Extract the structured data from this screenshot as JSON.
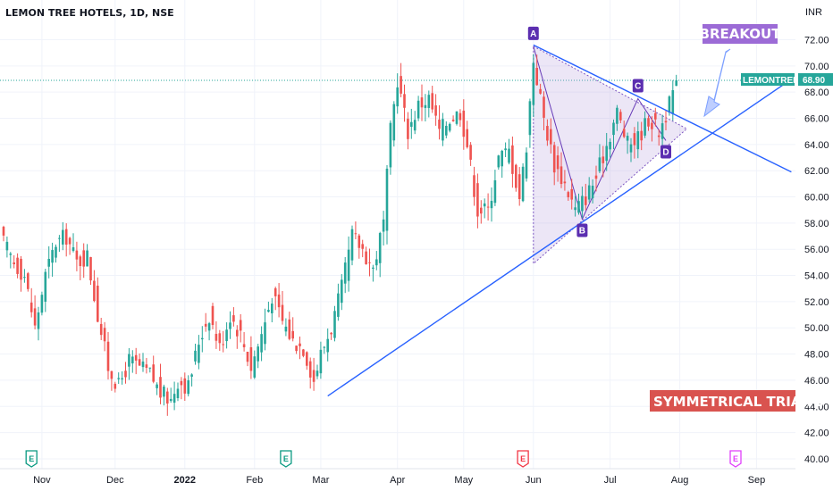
{
  "chart_title": "LEMON TREE HOTELS, 1D, NSE",
  "colors": {
    "up": "#26a69a",
    "down": "#ef5350",
    "trend": "#2962ff",
    "triangle_fill": "#b39ddb",
    "point": "#5b2eb0",
    "breakout": "#9c6bd6",
    "banner": "#d9534f"
  },
  "chart_data": {
    "type": "candlestick",
    "title": "LEMON TREE HOTELS, 1D, NSE",
    "ylabel": "INR",
    "ylim": [
      39.5,
      73.5
    ],
    "y_ticks": [
      "40.00",
      "42.00",
      "44.00",
      "46.00",
      "48.00",
      "50.00",
      "52.00",
      "54.00",
      "56.00",
      "58.00",
      "60.00",
      "62.00",
      "64.00",
      "66.00",
      "68.00",
      "70.00",
      "72.00"
    ],
    "x_ticks": [
      {
        "label": "Nov",
        "bar": 11
      },
      {
        "label": "Dec",
        "bar": 32
      },
      {
        "label": "2022",
        "bar": 52,
        "bold": true
      },
      {
        "label": "Feb",
        "bar": 72
      },
      {
        "label": "Mar",
        "bar": 91
      },
      {
        "label": "Apr",
        "bar": 113
      },
      {
        "label": "May",
        "bar": 132
      },
      {
        "label": "Jun",
        "bar": 152
      },
      {
        "label": "Jul",
        "bar": 174
      },
      {
        "label": "Aug",
        "bar": 194
      },
      {
        "label": "Sep",
        "bar": 216
      }
    ],
    "grid": true,
    "last_price": {
      "symbol": "LEMONTREE",
      "value": "68.90"
    },
    "anchors": [
      [
        0,
        56.5
      ],
      [
        3,
        55
      ],
      [
        6,
        54
      ],
      [
        9,
        50
      ],
      [
        12,
        54
      ],
      [
        15,
        56.5
      ],
      [
        18,
        57
      ],
      [
        21,
        55
      ],
      [
        24,
        55.5
      ],
      [
        27,
        51
      ],
      [
        30,
        47
      ],
      [
        33,
        45.5
      ],
      [
        36,
        47.5
      ],
      [
        39,
        47
      ],
      [
        42,
        46.5
      ],
      [
        45,
        45
      ],
      [
        48,
        44.5
      ],
      [
        50,
        46
      ],
      [
        53,
        45.5
      ],
      [
        56,
        49
      ],
      [
        59,
        51
      ],
      [
        62,
        48.5
      ],
      [
        65,
        51
      ],
      [
        68,
        49.5
      ],
      [
        71,
        47
      ],
      [
        74,
        49.5
      ],
      [
        77,
        52.5
      ],
      [
        80,
        50.5
      ],
      [
        83,
        49
      ],
      [
        86,
        48.5
      ],
      [
        89,
        46
      ],
      [
        91,
        48
      ],
      [
        94,
        50
      ],
      [
        97,
        53
      ],
      [
        100,
        57
      ],
      [
        103,
        56
      ],
      [
        106,
        54.5
      ],
      [
        109,
        58
      ],
      [
        111,
        65
      ],
      [
        113,
        69
      ],
      [
        116,
        65
      ],
      [
        119,
        67
      ],
      [
        122,
        67.5
      ],
      [
        125,
        65
      ],
      [
        128,
        66
      ],
      [
        131,
        66.5
      ],
      [
        133,
        64
      ],
      [
        136,
        59
      ],
      [
        139,
        59
      ],
      [
        142,
        63
      ],
      [
        145,
        63.5
      ],
      [
        148,
        60
      ],
      [
        150,
        64
      ],
      [
        152,
        70.5
      ],
      [
        155,
        66
      ],
      [
        158,
        62.5
      ],
      [
        161,
        61
      ],
      [
        164,
        59
      ],
      [
        167,
        60
      ],
      [
        170,
        61.5
      ],
      [
        173,
        64
      ],
      [
        176,
        66.5
      ],
      [
        179,
        64
      ],
      [
        182,
        64.5
      ],
      [
        185,
        66
      ],
      [
        188,
        65
      ],
      [
        191,
        67
      ],
      [
        193,
        68.9
      ]
    ],
    "patterns": [
      {
        "name": "symmetrical-triangle",
        "points": [
          {
            "label": "A",
            "bar": 152,
            "price": 71.5
          },
          {
            "label": "B",
            "bar": 166,
            "price": 58.3
          },
          {
            "label": "C",
            "bar": 182,
            "price": 67.5
          },
          {
            "label": "D",
            "bar": 190,
            "price": 64.3
          }
        ]
      }
    ],
    "annotations": [
      {
        "text": "BREAKOUT"
      },
      {
        "text": "SYMMETRICAL TRIANG"
      }
    ],
    "earnings_markers": [
      {
        "label": "E",
        "bar": 8,
        "type": "past"
      },
      {
        "label": "E",
        "bar": 81,
        "type": "past"
      },
      {
        "label": "E",
        "bar": 149,
        "type": "negative"
      },
      {
        "label": "E",
        "bar": 210,
        "type": "future"
      }
    ]
  }
}
